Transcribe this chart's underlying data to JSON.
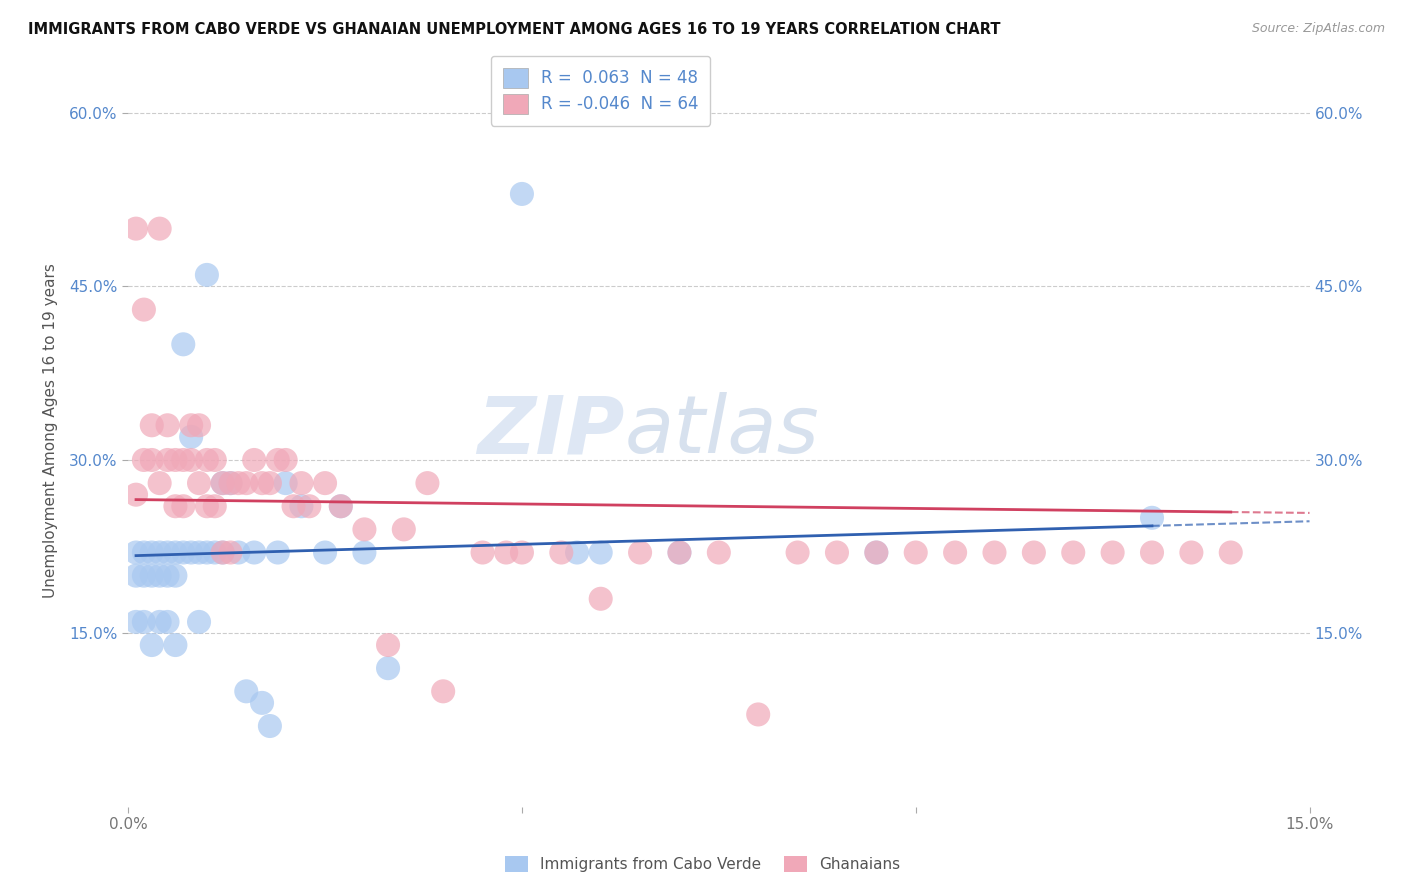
{
  "title": "IMMIGRANTS FROM CABO VERDE VS GHANAIAN UNEMPLOYMENT AMONG AGES 16 TO 19 YEARS CORRELATION CHART",
  "source": "Source: ZipAtlas.com",
  "ylabel": "Unemployment Among Ages 16 to 19 years",
  "xlim": [
    0.0,
    0.15
  ],
  "ylim": [
    0.0,
    0.65
  ],
  "xticks": [
    0.0,
    0.05,
    0.1,
    0.15
  ],
  "xticklabels": [
    "0.0%",
    "",
    "",
    "15.0%"
  ],
  "yticks": [
    0.15,
    0.3,
    0.45,
    0.6
  ],
  "yticklabels": [
    "15.0%",
    "30.0%",
    "45.0%",
    "60.0%"
  ],
  "cabo_verde_R": 0.063,
  "cabo_verde_N": 48,
  "ghanaian_R": -0.046,
  "ghanaian_N": 64,
  "cabo_verde_color": "#a8c8f0",
  "ghanaian_color": "#f0a8b8",
  "cabo_verde_line_color": "#3060b0",
  "ghanaian_line_color": "#d04060",
  "watermark_zip": "ZIP",
  "watermark_atlas": "atlas",
  "legend_labels": [
    "Immigrants from Cabo Verde",
    "Ghanaians"
  ],
  "cabo_verde_x": [
    0.001,
    0.001,
    0.001,
    0.002,
    0.002,
    0.002,
    0.003,
    0.003,
    0.003,
    0.004,
    0.004,
    0.004,
    0.005,
    0.005,
    0.005,
    0.006,
    0.006,
    0.006,
    0.007,
    0.007,
    0.008,
    0.008,
    0.009,
    0.009,
    0.01,
    0.01,
    0.011,
    0.012,
    0.012,
    0.013,
    0.014,
    0.015,
    0.016,
    0.017,
    0.018,
    0.019,
    0.02,
    0.022,
    0.025,
    0.027,
    0.03,
    0.033,
    0.05,
    0.057,
    0.06,
    0.07,
    0.095,
    0.13
  ],
  "cabo_verde_y": [
    0.22,
    0.2,
    0.16,
    0.22,
    0.2,
    0.16,
    0.22,
    0.2,
    0.14,
    0.22,
    0.2,
    0.16,
    0.22,
    0.2,
    0.16,
    0.22,
    0.2,
    0.14,
    0.4,
    0.22,
    0.32,
    0.22,
    0.22,
    0.16,
    0.46,
    0.22,
    0.22,
    0.28,
    0.22,
    0.28,
    0.22,
    0.1,
    0.22,
    0.09,
    0.07,
    0.22,
    0.28,
    0.26,
    0.22,
    0.26,
    0.22,
    0.12,
    0.53,
    0.22,
    0.22,
    0.22,
    0.22,
    0.25
  ],
  "ghanaian_x": [
    0.001,
    0.001,
    0.002,
    0.002,
    0.003,
    0.003,
    0.004,
    0.004,
    0.005,
    0.005,
    0.006,
    0.006,
    0.007,
    0.007,
    0.008,
    0.008,
    0.009,
    0.009,
    0.01,
    0.01,
    0.011,
    0.011,
    0.012,
    0.012,
    0.013,
    0.013,
    0.014,
    0.015,
    0.016,
    0.017,
    0.018,
    0.019,
    0.02,
    0.021,
    0.022,
    0.023,
    0.025,
    0.027,
    0.03,
    0.033,
    0.035,
    0.038,
    0.04,
    0.045,
    0.048,
    0.05,
    0.055,
    0.06,
    0.065,
    0.07,
    0.075,
    0.08,
    0.085,
    0.09,
    0.095,
    0.1,
    0.105,
    0.11,
    0.115,
    0.12,
    0.125,
    0.13,
    0.135,
    0.14
  ],
  "ghanaian_y": [
    0.27,
    0.5,
    0.3,
    0.43,
    0.3,
    0.33,
    0.5,
    0.28,
    0.33,
    0.3,
    0.3,
    0.26,
    0.3,
    0.26,
    0.33,
    0.3,
    0.33,
    0.28,
    0.3,
    0.26,
    0.3,
    0.26,
    0.28,
    0.22,
    0.28,
    0.22,
    0.28,
    0.28,
    0.3,
    0.28,
    0.28,
    0.3,
    0.3,
    0.26,
    0.28,
    0.26,
    0.28,
    0.26,
    0.24,
    0.14,
    0.24,
    0.28,
    0.1,
    0.22,
    0.22,
    0.22,
    0.22,
    0.18,
    0.22,
    0.22,
    0.22,
    0.08,
    0.22,
    0.22,
    0.22,
    0.22,
    0.22,
    0.22,
    0.22,
    0.22,
    0.22,
    0.22,
    0.22,
    0.22
  ]
}
